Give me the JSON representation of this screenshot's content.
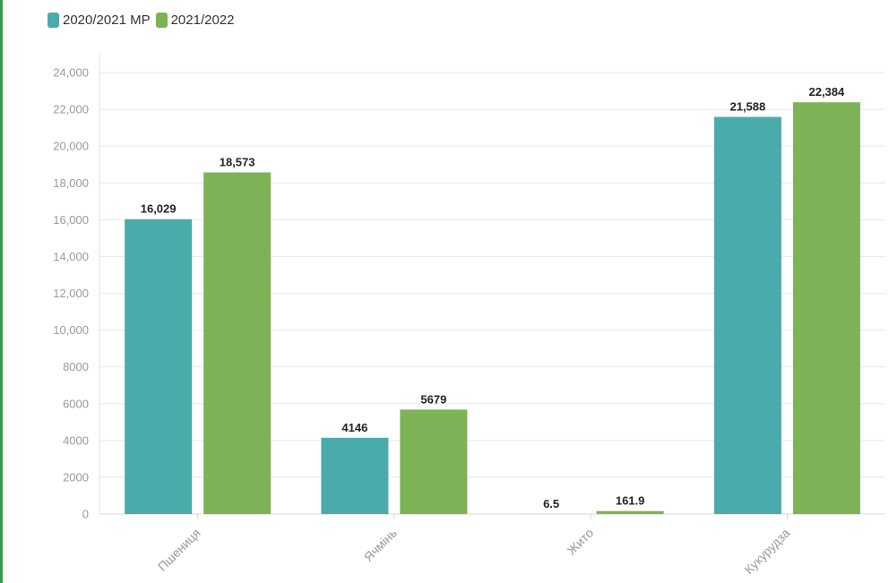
{
  "chart_data": {
    "type": "bar",
    "categories": [
      "Пшениця",
      "Ячмінь",
      "Жито",
      "Кукурудза"
    ],
    "series": [
      {
        "name": "2020/2021 МР",
        "color": "#4aabab",
        "values": [
          16029,
          4146,
          6.5,
          21588
        ],
        "labels": [
          "16,029",
          "4146",
          "6.5",
          "21,588"
        ]
      },
      {
        "name": "2021/2022",
        "color": "#7db356",
        "values": [
          18573,
          5679,
          161.9,
          22384
        ],
        "labels": [
          "18,573",
          "5679",
          "161.9",
          "22,384"
        ]
      }
    ],
    "ylim": [
      0,
      24000
    ],
    "yticks": [
      0,
      2000,
      4000,
      6000,
      8000,
      10000,
      12000,
      14000,
      16000,
      18000,
      20000,
      22000,
      24000
    ],
    "ytick_labels": [
      "0",
      "2000",
      "4000",
      "6000",
      "8000",
      "10,000",
      "12,000",
      "14,000",
      "16,000",
      "18,000",
      "20,000",
      "22,000",
      "24,000"
    ],
    "grid": true,
    "legend_position": "top-left",
    "xlabel": "",
    "ylabel": ""
  }
}
